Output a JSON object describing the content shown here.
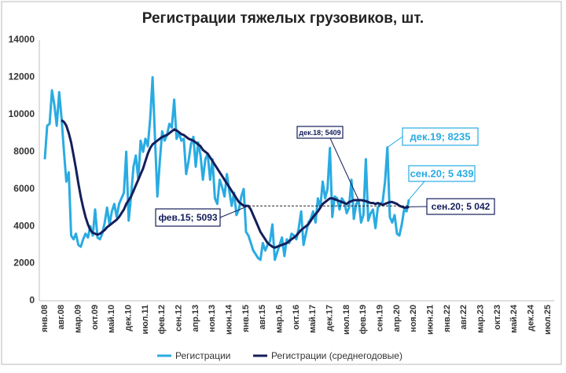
{
  "chart_data": {
    "type": "line",
    "title": "Регистрации тяжелых грузовиков, шт.",
    "categories": [
      "янв.08",
      null,
      null,
      null,
      null,
      null,
      null,
      "авг.08",
      null,
      null,
      null,
      null,
      null,
      null,
      "мар.09",
      null,
      null,
      null,
      null,
      null,
      null,
      "окт.09",
      null,
      null,
      null,
      null,
      null,
      null,
      "май.10",
      null,
      null,
      null,
      null,
      null,
      null,
      "дек.10",
      null,
      null,
      null,
      null,
      null,
      null,
      "июл.11",
      null,
      null,
      null,
      null,
      null,
      null,
      "фев.12",
      null,
      null,
      null,
      null,
      null,
      null,
      "сен.12",
      null,
      null,
      null,
      null,
      null,
      null,
      "апр.13",
      null,
      null,
      null,
      null,
      null,
      null,
      "ноя.13",
      null,
      null,
      null,
      null,
      null,
      null,
      "июн.14",
      null,
      null,
      null,
      null,
      null,
      null,
      "янв.15",
      null,
      null,
      null,
      null,
      null,
      null,
      "авг.15",
      null,
      null,
      null,
      null,
      null,
      null,
      "мар.16",
      null,
      null,
      null,
      null,
      null,
      null,
      "окт.16",
      null,
      null,
      null,
      null,
      null,
      null,
      "май.17",
      null,
      null,
      null,
      null,
      null,
      null,
      "дек.17",
      null,
      null,
      null,
      null,
      null,
      null,
      "июл.18",
      null,
      null,
      null,
      null,
      null,
      null,
      "фев.19",
      null,
      null,
      null,
      null,
      null,
      null,
      "сен.19",
      null,
      null,
      null,
      null,
      null,
      null,
      "апр.20",
      null,
      null,
      null,
      null,
      null,
      null,
      "ноя.20",
      null,
      null,
      null,
      null,
      null,
      null,
      "июн.21",
      null,
      null,
      null,
      null,
      null,
      null,
      "янв.22",
      null,
      null,
      null,
      null,
      null,
      null,
      "авг.22",
      null,
      null,
      null,
      null,
      null,
      null,
      "мар.23",
      null,
      null,
      null,
      null,
      null,
      null,
      "окт.23",
      null,
      null,
      null,
      null,
      null,
      null,
      "май.24",
      null,
      null,
      null,
      null,
      null,
      null,
      "дек.24",
      null,
      null,
      null,
      null,
      null,
      null,
      "июл.25"
    ],
    "series": [
      {
        "name": "Регистрации",
        "color": "#29abe2",
        "values": [
          7600,
          9400,
          9500,
          11300,
          10500,
          9400,
          11200,
          9800,
          8000,
          6400,
          6900,
          3500,
          3300,
          3600,
          3000,
          2900,
          3300,
          3600,
          3400,
          4000,
          3500,
          4900,
          3400,
          3300,
          3600,
          4200,
          5000,
          4100,
          4800,
          5200,
          4500,
          5200,
          5500,
          5800,
          8000,
          4300,
          5600,
          7200,
          7800,
          6500,
          8600,
          8000,
          8700,
          8300,
          9800,
          12000,
          8700,
          5600,
          7500,
          9100,
          8600,
          8900,
          9500,
          9300,
          10800,
          8700,
          9000,
          8600,
          8700,
          6800,
          7500,
          8400,
          8800,
          7200,
          8500,
          7800,
          6500,
          7600,
          7900,
          6500,
          7600,
          5500,
          5200,
          6500,
          6100,
          5600,
          6800,
          5900,
          5100,
          5800,
          4600,
          4900,
          5600,
          6000,
          3700,
          3500,
          3100,
          2700,
          2500,
          2300,
          2200,
          3100,
          2700,
          3000,
          3200,
          4100,
          2200,
          2600,
          3000,
          3400,
          2400,
          3300,
          3100,
          3600,
          3500,
          3300,
          3900,
          4800,
          3000,
          3600,
          4200,
          4400,
          4800,
          4200,
          5500,
          5000,
          6400,
          5500,
          6000,
          8200,
          4500,
          5600,
          5500,
          4900,
          5500,
          5300,
          4700,
          5000,
          6500,
          4400,
          5200,
          5400,
          4200,
          4600,
          7600,
          4300,
          4700,
          4900,
          3900,
          5000,
          5200,
          5300,
          6400,
          8235,
          4500,
          4200,
          4600,
          3600,
          3500,
          4100,
          4900,
          4800,
          5439,
          null,
          null,
          null,
          null,
          null,
          null,
          null,
          null,
          null,
          null,
          null,
          null,
          null,
          null,
          null,
          null,
          null,
          null,
          null,
          null,
          null,
          null,
          null,
          null,
          null,
          null,
          null,
          null,
          null,
          null,
          null,
          null,
          null,
          null,
          null,
          null,
          null,
          null,
          null,
          null,
          null,
          null,
          null,
          null,
          null,
          null,
          null,
          null,
          null,
          null,
          null,
          null,
          null,
          null,
          null,
          null,
          null,
          null
        ]
      },
      {
        "name": "Регистрации (среднегодовые)",
        "color": "#141e5a",
        "values": [
          null,
          null,
          null,
          null,
          null,
          null,
          null,
          9700,
          9600,
          9400,
          9000,
          8500,
          7800,
          7100,
          6300,
          5600,
          5000,
          4500,
          4100,
          3800,
          3650,
          3600,
          3550,
          3600,
          3700,
          3800,
          3950,
          4050,
          4150,
          4250,
          4350,
          4500,
          4700,
          4900,
          5200,
          5400,
          5600,
          5900,
          6200,
          6500,
          6800,
          7100,
          7500,
          7900,
          8200,
          8400,
          8500,
          8600,
          8700,
          8800,
          8850,
          8900,
          9000,
          9100,
          9200,
          9150,
          9050,
          8950,
          8900,
          8800,
          8700,
          8650,
          8600,
          8500,
          8400,
          8300,
          8100,
          8000,
          7900,
          7700,
          7500,
          7300,
          7100,
          6900,
          6700,
          6500,
          6300,
          6100,
          5900,
          5700,
          5500,
          5300,
          5200,
          5100,
          5100,
          5093,
          4900,
          4600,
          4300,
          4000,
          3700,
          3500,
          3300,
          3100,
          3000,
          2900,
          2850,
          2900,
          2950,
          3000,
          3050,
          3100,
          3200,
          3300,
          3400,
          3500,
          3650,
          3800,
          3900,
          4000,
          4100,
          4300,
          4500,
          4650,
          4800,
          5000,
          5200,
          5300,
          5400,
          5500,
          5500,
          5450,
          5400,
          5350,
          5300,
          5250,
          5200,
          5300,
          5350,
          5400,
          5400,
          5409,
          5400,
          5380,
          5350,
          5300,
          5250,
          5250,
          5200,
          5250,
          5200,
          5150,
          5200,
          5250,
          5300,
          5300,
          5250,
          5200,
          5100,
          5050,
          5000,
          5000,
          5042,
          null,
          null,
          null,
          null,
          null,
          null,
          null,
          null,
          null,
          null,
          null,
          null,
          null,
          null,
          null,
          null,
          null,
          null,
          null,
          null,
          null,
          null,
          null,
          null,
          null,
          null,
          null,
          null,
          null,
          null,
          null,
          null,
          null,
          null,
          null,
          null,
          null,
          null,
          null,
          null,
          null,
          null,
          null,
          null,
          null,
          null,
          null,
          null,
          null,
          null,
          null,
          null,
          null,
          null,
          null,
          null,
          null,
          null
        ]
      }
    ],
    "ylim": [
      0,
      14000
    ],
    "yticks": [
      0,
      2000,
      4000,
      6000,
      8000,
      10000,
      12000,
      14000
    ],
    "grid": false,
    "annotations": [
      {
        "text": "фев.15; 5093"
      },
      {
        "text": "дек.18; 5409"
      },
      {
        "text": "дек.19; 8235"
      },
      {
        "text": "сен.20; 5 439"
      },
      {
        "text": "сен.20; 5 042"
      }
    ]
  }
}
